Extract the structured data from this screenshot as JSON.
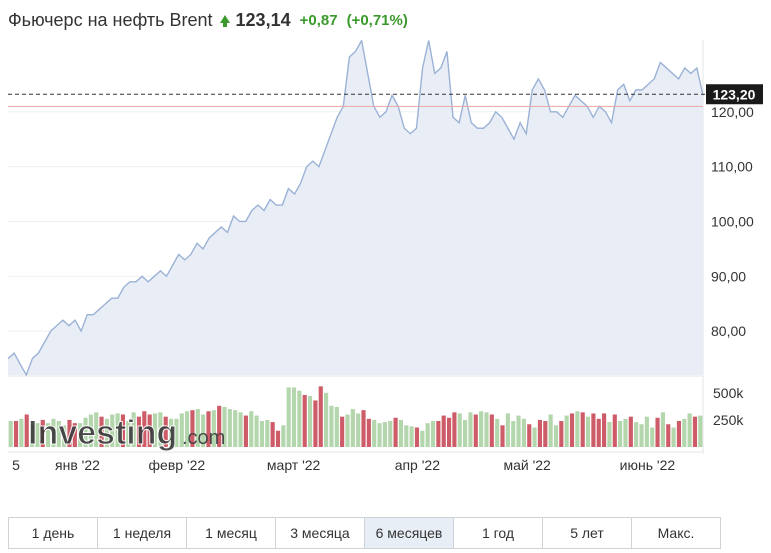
{
  "header": {
    "title": "Фьючерс на нефть Brent",
    "price": "123,14",
    "change": "+0,87",
    "change_pct": "(+0,71%)",
    "up_color": "#3b9a2c"
  },
  "watermark": {
    "brand": "Investing",
    "suffix": ".com"
  },
  "periods": [
    "1 день",
    "1 неделя",
    "1 месяц",
    "3 месяца",
    "6 месяцев",
    "1 год",
    "5 лет",
    "Макс."
  ],
  "active_period": "6 месяцев",
  "chart_data": {
    "type": "area",
    "colors": {
      "line": "#9bb2d6",
      "fill": "#e9eef6",
      "volume_up": "#b4d6ac",
      "volume_down": "#cd5c68"
    },
    "x_tick_labels": [
      "5",
      "янв '22",
      "февр '22",
      "март '22",
      "апр '22",
      "май '22",
      "июнь '22"
    ],
    "y_tick_labels": [
      "80,00",
      "90,00",
      "100,00",
      "110,00",
      "120,00"
    ],
    "y_ticks": [
      80,
      90,
      100,
      110,
      120
    ],
    "ylim": [
      72,
      132
    ],
    "last_value_label": "123,20",
    "last_value": 123.2,
    "reference_value": 121.0,
    "series": [
      {
        "values": [
          75,
          76,
          74,
          72,
          75,
          76,
          78,
          80,
          81,
          82,
          81,
          82,
          80,
          83,
          83,
          84,
          85,
          86,
          86,
          88,
          89,
          89,
          90,
          89,
          90,
          91,
          90,
          92,
          94,
          93,
          94,
          96,
          95,
          97,
          98,
          99,
          98,
          101,
          100,
          100,
          102,
          103,
          102,
          104,
          103,
          103,
          106,
          105,
          107,
          110,
          111,
          110,
          113,
          116,
          119,
          121,
          130,
          131,
          133,
          127,
          121,
          119,
          120,
          123,
          121,
          117,
          116,
          117,
          128,
          133,
          127,
          128,
          131,
          119,
          118,
          123,
          118,
          117,
          117,
          118,
          120,
          119,
          117,
          115,
          118,
          116,
          124,
          126,
          124,
          120,
          120,
          119,
          121,
          123,
          122,
          121,
          119,
          121,
          120,
          118,
          124,
          125,
          122,
          124,
          124,
          125,
          126,
          129,
          128,
          127,
          126,
          128,
          127,
          128,
          123
        ]
      }
    ],
    "volume_ticks": [
      "250k",
      "500k"
    ],
    "volume": [
      {
        "v": 240,
        "up": true
      },
      {
        "v": 240,
        "up": false
      },
      {
        "v": 260,
        "up": true
      },
      {
        "v": 300,
        "up": false
      },
      {
        "v": 200,
        "up": true
      },
      {
        "v": 220,
        "up": true
      },
      {
        "v": 250,
        "up": false
      },
      {
        "v": 220,
        "up": true
      },
      {
        "v": 260,
        "up": true
      },
      {
        "v": 240,
        "up": true
      },
      {
        "v": 200,
        "up": true
      },
      {
        "v": 250,
        "up": false
      },
      {
        "v": 220,
        "up": false
      },
      {
        "v": 220,
        "up": true
      },
      {
        "v": 270,
        "up": true
      },
      {
        "v": 300,
        "up": true
      },
      {
        "v": 320,
        "up": true
      },
      {
        "v": 280,
        "up": false
      },
      {
        "v": 260,
        "up": true
      },
      {
        "v": 300,
        "up": true
      },
      {
        "v": 310,
        "up": true
      },
      {
        "v": 300,
        "up": false
      },
      {
        "v": 240,
        "up": true
      },
      {
        "v": 320,
        "up": true
      },
      {
        "v": 280,
        "up": false
      },
      {
        "v": 330,
        "up": false
      },
      {
        "v": 300,
        "up": false
      },
      {
        "v": 310,
        "up": true
      },
      {
        "v": 320,
        "up": true
      },
      {
        "v": 280,
        "up": false
      },
      {
        "v": 260,
        "up": true
      },
      {
        "v": 260,
        "up": true
      },
      {
        "v": 310,
        "up": true
      },
      {
        "v": 330,
        "up": true
      },
      {
        "v": 340,
        "up": false
      },
      {
        "v": 350,
        "up": true
      },
      {
        "v": 300,
        "up": true
      },
      {
        "v": 330,
        "up": false
      },
      {
        "v": 340,
        "up": true
      },
      {
        "v": 380,
        "up": false
      },
      {
        "v": 370,
        "up": true
      },
      {
        "v": 350,
        "up": true
      },
      {
        "v": 340,
        "up": true
      },
      {
        "v": 320,
        "up": true
      },
      {
        "v": 290,
        "up": false
      },
      {
        "v": 330,
        "up": true
      },
      {
        "v": 290,
        "up": true
      },
      {
        "v": 240,
        "up": true
      },
      {
        "v": 250,
        "up": true
      },
      {
        "v": 230,
        "up": false
      },
      {
        "v": 150,
        "up": false
      },
      {
        "v": 200,
        "up": true
      },
      {
        "v": 550,
        "up": true
      },
      {
        "v": 550,
        "up": true
      },
      {
        "v": 520,
        "up": true
      },
      {
        "v": 480,
        "up": false
      },
      {
        "v": 470,
        "up": true
      },
      {
        "v": 430,
        "up": false
      },
      {
        "v": 560,
        "up": false
      },
      {
        "v": 500,
        "up": true
      },
      {
        "v": 380,
        "up": true
      },
      {
        "v": 370,
        "up": true
      },
      {
        "v": 280,
        "up": false
      },
      {
        "v": 300,
        "up": true
      },
      {
        "v": 350,
        "up": true
      },
      {
        "v": 310,
        "up": true
      },
      {
        "v": 340,
        "up": false
      },
      {
        "v": 260,
        "up": false
      },
      {
        "v": 250,
        "up": true
      },
      {
        "v": 220,
        "up": true
      },
      {
        "v": 230,
        "up": true
      },
      {
        "v": 240,
        "up": true
      },
      {
        "v": 270,
        "up": false
      },
      {
        "v": 250,
        "up": true
      },
      {
        "v": 200,
        "up": true
      },
      {
        "v": 190,
        "up": true
      },
      {
        "v": 180,
        "up": false
      },
      {
        "v": 150,
        "up": true
      },
      {
        "v": 220,
        "up": true
      },
      {
        "v": 240,
        "up": true
      },
      {
        "v": 240,
        "up": false
      },
      {
        "v": 290,
        "up": false
      },
      {
        "v": 270,
        "up": false
      },
      {
        "v": 320,
        "up": false
      },
      {
        "v": 310,
        "up": true
      },
      {
        "v": 250,
        "up": true
      },
      {
        "v": 320,
        "up": true
      },
      {
        "v": 300,
        "up": false
      },
      {
        "v": 330,
        "up": true
      },
      {
        "v": 320,
        "up": true
      },
      {
        "v": 300,
        "up": false
      },
      {
        "v": 260,
        "up": true
      },
      {
        "v": 200,
        "up": false
      },
      {
        "v": 310,
        "up": true
      },
      {
        "v": 240,
        "up": true
      },
      {
        "v": 290,
        "up": true
      },
      {
        "v": 260,
        "up": true
      },
      {
        "v": 210,
        "up": false
      },
      {
        "v": 180,
        "up": true
      },
      {
        "v": 250,
        "up": false
      },
      {
        "v": 240,
        "up": false
      },
      {
        "v": 300,
        "up": true
      },
      {
        "v": 200,
        "up": true
      },
      {
        "v": 240,
        "up": false
      },
      {
        "v": 290,
        "up": true
      },
      {
        "v": 310,
        "up": false
      },
      {
        "v": 330,
        "up": true
      },
      {
        "v": 320,
        "up": false
      },
      {
        "v": 280,
        "up": true
      },
      {
        "v": 310,
        "up": false
      },
      {
        "v": 260,
        "up": false
      },
      {
        "v": 310,
        "up": false
      },
      {
        "v": 230,
        "up": true
      },
      {
        "v": 300,
        "up": false
      },
      {
        "v": 240,
        "up": true
      },
      {
        "v": 260,
        "up": true
      },
      {
        "v": 280,
        "up": false
      },
      {
        "v": 230,
        "up": true
      },
      {
        "v": 210,
        "up": true
      },
      {
        "v": 280,
        "up": true
      },
      {
        "v": 180,
        "up": true
      },
      {
        "v": 270,
        "up": false
      },
      {
        "v": 320,
        "up": true
      },
      {
        "v": 210,
        "up": false
      },
      {
        "v": 180,
        "up": true
      },
      {
        "v": 240,
        "up": false
      },
      {
        "v": 260,
        "up": true
      },
      {
        "v": 310,
        "up": true
      },
      {
        "v": 280,
        "up": false
      },
      {
        "v": 290,
        "up": true
      }
    ]
  }
}
